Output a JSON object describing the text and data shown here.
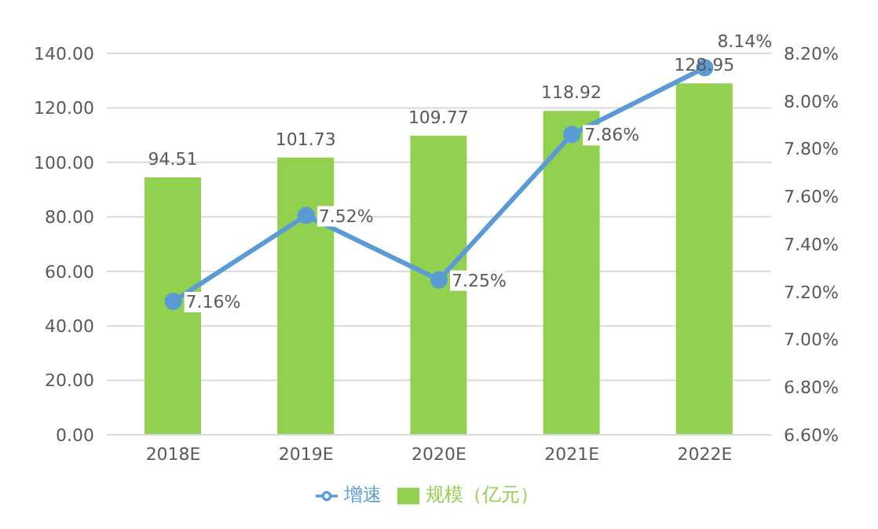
{
  "chart_data": {
    "type": "bar",
    "categories": [
      "2018E",
      "2019E",
      "2020E",
      "2021E",
      "2022E"
    ],
    "series": [
      {
        "name": "规模（亿元）",
        "color": "#92d050",
        "values": [
          94.51,
          101.73,
          109.77,
          118.92,
          128.95
        ],
        "value_labels": [
          "94.51",
          "101.73",
          "109.77",
          "118.92",
          "128.95"
        ]
      },
      {
        "name": "增速",
        "type": "line",
        "axis": "y2",
        "color": "#5b9bd5",
        "values": [
          7.16,
          7.52,
          7.25,
          7.86,
          8.14
        ],
        "value_labels": [
          "7.16%",
          "7.52%",
          "7.25%",
          "7.86%",
          "8.14%"
        ]
      }
    ],
    "ylim": [
      0,
      140
    ],
    "yticks": [
      {
        "value": 0,
        "label": "0.00"
      },
      {
        "value": 20,
        "label": "20.00"
      },
      {
        "value": 40,
        "label": "40.00"
      },
      {
        "value": 60,
        "label": "60.00"
      },
      {
        "value": 80,
        "label": "80.00"
      },
      {
        "value": 100,
        "label": "100.00"
      },
      {
        "value": 120,
        "label": "120.00"
      },
      {
        "value": 140,
        "label": "140.00"
      }
    ],
    "y2lim": [
      6.6,
      8.2
    ],
    "y2ticks": [
      {
        "value": 6.6,
        "label": "6.60%"
      },
      {
        "value": 6.8,
        "label": "6.80%"
      },
      {
        "value": 7.0,
        "label": "7.00%"
      },
      {
        "value": 7.2,
        "label": "7.20%"
      },
      {
        "value": 7.4,
        "label": "7.40%"
      },
      {
        "value": 7.6,
        "label": "7.60%"
      },
      {
        "value": 7.8,
        "label": "7.80%"
      },
      {
        "value": 8.0,
        "label": "8.00%"
      },
      {
        "value": 8.2,
        "label": "8.20%"
      }
    ],
    "grid": "y",
    "legend": "bottom",
    "marker": "circle"
  }
}
